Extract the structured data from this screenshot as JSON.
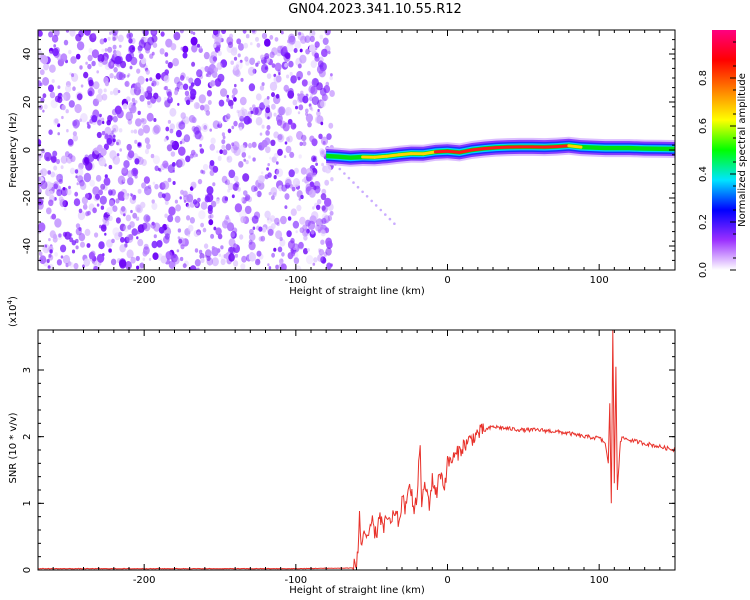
{
  "title": "GN04.2023.341.10.55.R12",
  "chart_data": [
    {
      "type": "heatmap",
      "xlabel": "Height of straight line (km)",
      "ylabel": "Frequency (Hz)",
      "xlim": [
        -270,
        150
      ],
      "ylim": [
        -50,
        50
      ],
      "xticks": [
        -200,
        -100,
        0,
        100
      ],
      "yticks": [
        -40,
        -20,
        0,
        20,
        40
      ],
      "noise_region_x": [
        -270,
        -76
      ],
      "ridge": {
        "x": [
          -80,
          -72,
          -64,
          -56,
          -48,
          -40,
          -32,
          -24,
          -16,
          -8,
          0,
          8,
          16,
          24,
          32,
          40,
          48,
          56,
          64,
          72,
          80,
          88,
          96,
          104,
          112,
          120,
          130,
          140,
          150
        ],
        "f": [
          -2.5,
          -2.8,
          -3.2,
          -2.9,
          -3.0,
          -2.6,
          -2.0,
          -1.5,
          -1.6,
          -0.8,
          -0.5,
          -1.0,
          0.0,
          0.6,
          1.0,
          1.2,
          1.3,
          1.3,
          1.2,
          1.4,
          1.8,
          1.2,
          1.0,
          0.8,
          0.8,
          0.8,
          0.6,
          0.5,
          0.4
        ],
        "amp": [
          0.7,
          0.75,
          0.85,
          0.8,
          0.9,
          0.85,
          0.88,
          0.92,
          0.9,
          0.95,
          0.95,
          0.92,
          0.95,
          0.97,
          1.0,
          1.0,
          1.0,
          1.0,
          1.0,
          1.0,
          0.95,
          0.85,
          0.7,
          0.6,
          0.55,
          0.5,
          0.45,
          0.4,
          0.35
        ]
      },
      "colorbar": {
        "label": "Normalized spectral amplitude",
        "ticks": [
          "0.0",
          "0.2",
          "0.4",
          "0.6",
          "0.8"
        ],
        "range": [
          0,
          1
        ],
        "colors": [
          "#ffffff",
          "#9b30ff",
          "#0000ff",
          "#00e5ff",
          "#00ff00",
          "#ffff00",
          "#ff8000",
          "#ff0000",
          "#ff0080"
        ]
      }
    },
    {
      "type": "line",
      "xlabel": "Height of straight line (km)",
      "ylabel": "SNR (10 * v/v)",
      "scale_label": "(x10",
      "scale_exp": "4",
      "scale_close": ")",
      "xlim": [
        -270,
        150
      ],
      "ylim": [
        0,
        3.6
      ],
      "xticks": [
        -200,
        -100,
        0,
        100
      ],
      "yticks": [
        0,
        1,
        2,
        3
      ],
      "series": [
        {
          "color": "#e8312a",
          "x": [
            -270,
            -200,
            -100,
            -62,
            -59,
            -58,
            -57,
            -55,
            -52,
            -50,
            -47,
            -45,
            -42,
            -40,
            -37,
            -35,
            -32,
            -30,
            -27,
            -25,
            -22,
            -20,
            -18,
            -17,
            -15,
            -12,
            -10,
            -7,
            -5,
            -2,
            0,
            5,
            10,
            15,
            20,
            25,
            30,
            40,
            50,
            60,
            70,
            80,
            90,
            100,
            104,
            106,
            107,
            108,
            109,
            110,
            111,
            112,
            114,
            116,
            120,
            130,
            140,
            150
          ],
          "y": [
            0.02,
            0.02,
            0.02,
            0.03,
            0.2,
            0.9,
            0.35,
            0.6,
            0.4,
            0.75,
            0.5,
            0.85,
            0.6,
            0.8,
            0.65,
            0.9,
            0.7,
            1.05,
            0.9,
            1.4,
            0.85,
            1.1,
            1.95,
            0.9,
            1.3,
            1.0,
            1.35,
            1.15,
            1.5,
            1.25,
            1.6,
            1.7,
            1.85,
            1.95,
            2.05,
            2.1,
            2.15,
            2.12,
            2.1,
            2.1,
            2.08,
            2.05,
            2.0,
            1.98,
            1.9,
            1.6,
            2.5,
            1.0,
            3.6,
            1.3,
            3.05,
            1.2,
            1.95,
            1.98,
            1.95,
            1.9,
            1.85,
            1.8
          ]
        }
      ]
    }
  ]
}
